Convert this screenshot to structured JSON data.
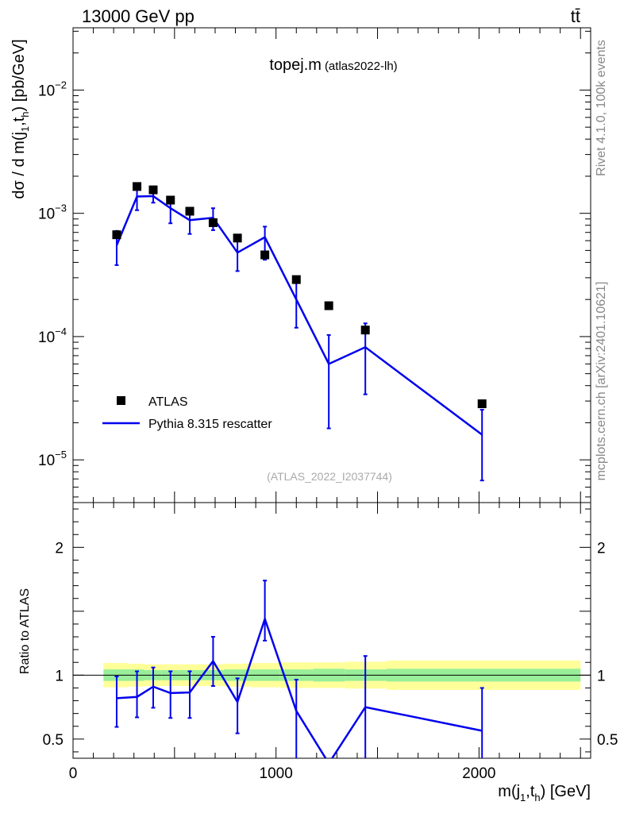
{
  "header": {
    "left": "13000 GeV pp",
    "right": "tt̄"
  },
  "title": {
    "main": "topej.m",
    "sub": "(atlas2022-lh)"
  },
  "watermark": "(ATLAS_2022_I2037744)",
  "side": {
    "rivet": "Rivet 4.1.0,  100k events",
    "mcplots": "mcplots.cern.ch [arXiv:2401.10621]"
  },
  "axes": {
    "ylabel_top": "dσ / d m(j1,th) [pb/GeV]",
    "ylabel_bottom": "Ratio to ATLAS",
    "xlabel": "m(j1,th) [GeV]"
  },
  "legend": {
    "data_label": "ATLAS",
    "mc_label": "Pythia 8.315 rescatter"
  },
  "colors": {
    "mc": "#0000ee",
    "data": "#000000",
    "band_inner": "#99ee99",
    "band_outer": "#ffff99"
  },
  "chart_data": [
    {
      "type": "scatter",
      "scale": "log",
      "title": "topej.m (atlas2022-lh)",
      "xlabel": "m(j1,th) [GeV]",
      "ylabel": "dσ / d m(j1,th) [pb/GeV]",
      "xlim": [
        0,
        2550
      ],
      "ylim": [
        4.5e-06,
        0.032
      ],
      "yticks": [
        {
          "value": 1e-05,
          "base": "10",
          "exp": "−5"
        },
        {
          "value": 0.0001,
          "base": "10",
          "exp": "−4"
        },
        {
          "value": 0.001,
          "base": "10",
          "exp": "−3"
        },
        {
          "value": 0.01,
          "base": "10",
          "exp": "−2"
        }
      ],
      "series": [
        {
          "name": "ATLAS",
          "x": [
            215,
            315,
            395,
            480,
            575,
            690,
            810,
            945,
            1100,
            1260,
            1440,
            2015
          ],
          "y": [
            0.00067,
            0.00165,
            0.00155,
            0.00128,
            0.00104,
            0.00084,
            0.00063,
            0.00046,
            0.00029,
            0.000178,
            0.000113,
            2.85e-05
          ]
        },
        {
          "name": "Pythia 8.315 rescatter",
          "x": [
            215,
            315,
            395,
            480,
            575,
            690,
            810,
            945,
            1100,
            1260,
            1440,
            2015
          ],
          "y": [
            0.00055,
            0.00137,
            0.00138,
            0.0011,
            0.00088,
            0.00092,
            0.00048,
            0.00064,
            0.0002,
            6e-05,
            8.2e-05,
            1.6e-05
          ],
          "err_low": [
            0.00038,
            0.00106,
            0.00122,
            0.00083,
            0.00068,
            0.00073,
            0.00034,
            0.00042,
            0.000118,
            1.8e-05,
            3.4e-05,
            6.8e-06
          ],
          "err_high": [
            0.00072,
            0.00168,
            0.00156,
            0.00136,
            0.00108,
            0.0011,
            0.00062,
            0.00078,
            0.00028,
            0.000103,
            0.000128,
            2.55e-05
          ]
        }
      ]
    },
    {
      "type": "line",
      "title": "Ratio to ATLAS",
      "xlabel": "m(j1,th) [GeV]",
      "ylabel": "Ratio to ATLAS",
      "xlim": [
        0,
        2550
      ],
      "ylim": [
        0.35,
        2.35
      ],
      "yticks": [
        0.5,
        1,
        2
      ],
      "xticks": [
        0,
        1000,
        2000
      ],
      "bands": {
        "edges": [
          150,
          270,
          350,
          435,
          530,
          630,
          745,
          880,
          1020,
          1185,
          1340,
          1545,
          2500
        ],
        "inner_lo": [
          0.955,
          0.955,
          0.96,
          0.96,
          0.96,
          0.96,
          0.955,
          0.955,
          0.955,
          0.95,
          0.955,
          0.95
        ],
        "inner_hi": [
          1.045,
          1.045,
          1.04,
          1.04,
          1.04,
          1.04,
          1.045,
          1.045,
          1.045,
          1.05,
          1.045,
          1.05
        ],
        "outer_lo": [
          0.905,
          0.91,
          0.915,
          0.915,
          0.915,
          0.915,
          0.91,
          0.905,
          0.9,
          0.9,
          0.895,
          0.885
        ],
        "outer_hi": [
          1.095,
          1.09,
          1.085,
          1.085,
          1.085,
          1.085,
          1.09,
          1.095,
          1.1,
          1.1,
          1.105,
          1.115
        ]
      },
      "series": [
        {
          "name": "Pythia 8.315 rescatter / ATLAS",
          "x": [
            215,
            315,
            395,
            480,
            575,
            690,
            810,
            945,
            1100,
            1260,
            1440,
            2015
          ],
          "y": [
            0.82,
            0.83,
            0.91,
            0.86,
            0.865,
            1.11,
            0.79,
            1.44,
            0.72,
            0.31,
            0.75,
            0.565
          ],
          "err_low": [
            0.595,
            0.67,
            0.745,
            0.665,
            0.665,
            0.915,
            0.545,
            1.27,
            0.2,
            0.2,
            0.2,
            0.2
          ],
          "err_high": [
            0.99,
            1.03,
            1.06,
            1.03,
            1.03,
            1.3,
            0.975,
            1.74,
            0.965,
            null,
            1.15,
            0.9
          ]
        }
      ]
    }
  ]
}
